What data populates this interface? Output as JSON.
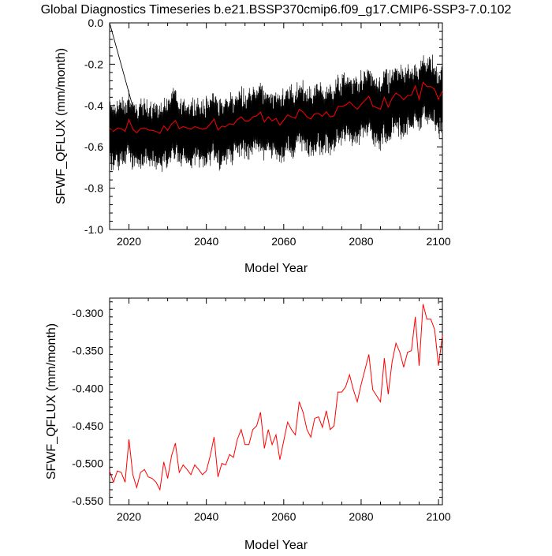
{
  "title": "Global Diagnostics Timeseries b.e21.BSSP370cmip6.f09_g17.CMIP6-SSP3-7.0.102",
  "colors": {
    "monthly": "#000000",
    "annual": "#ff0000",
    "axis": "#000000"
  },
  "chart_data": [
    {
      "type": "line",
      "xlabel": "Model Year",
      "ylabel": "SFWF_QFLUX (mm/month)",
      "xlim": [
        2015,
        2101
      ],
      "ylim": [
        -1.0,
        0.0
      ],
      "xticks": [
        2020,
        2040,
        2060,
        2080,
        2100
      ],
      "yticks": [
        -1.0,
        -0.8,
        -0.6,
        -0.4,
        -0.2,
        0.0
      ],
      "ytick_labels": [
        "-1.0",
        "-0.8",
        "-0.6",
        "-0.4",
        "-0.2",
        "0.0"
      ],
      "grid": false,
      "series": [
        {
          "description": "monthly values (black, dense oscillation)",
          "color": "#000000",
          "year_start": 2015,
          "months_per_year": 12,
          "monthly_cycle_trough": -0.68,
          "monthly_cycle_peak": -0.42,
          "spikes_from_zero": [
            [
              2015.0,
              0.0
            ],
            [
              2021.5,
              -0.45
            ]
          ]
        },
        {
          "description": "annual mean (red)",
          "color": "#ff0000",
          "x": [
            2015,
            2016,
            2017,
            2018,
            2019,
            2020,
            2021,
            2022,
            2023,
            2024,
            2025,
            2026,
            2027,
            2028,
            2029,
            2030,
            2031,
            2032,
            2033,
            2034,
            2035,
            2036,
            2037,
            2038,
            2039,
            2040,
            2041,
            2042,
            2043,
            2044,
            2045,
            2046,
            2047,
            2048,
            2049,
            2050,
            2051,
            2052,
            2053,
            2054,
            2055,
            2056,
            2057,
            2058,
            2059,
            2060,
            2061,
            2062,
            2063,
            2064,
            2065,
            2066,
            2067,
            2068,
            2069,
            2070,
            2071,
            2072,
            2073,
            2074,
            2075,
            2076,
            2077,
            2078,
            2079,
            2080,
            2081,
            2082,
            2083,
            2084,
            2085,
            2086,
            2087,
            2088,
            2089,
            2090,
            2091,
            2092,
            2093,
            2094,
            2095,
            2096,
            2097,
            2098,
            2099,
            2100,
            2101
          ],
          "values": [
            -0.51,
            -0.525,
            -0.51,
            -0.512,
            -0.525,
            -0.468,
            -0.515,
            -0.532,
            -0.512,
            -0.508,
            -0.518,
            -0.52,
            -0.525,
            -0.535,
            -0.498,
            -0.52,
            -0.49,
            -0.473,
            -0.512,
            -0.502,
            -0.508,
            -0.515,
            -0.502,
            -0.508,
            -0.515,
            -0.51,
            -0.49,
            -0.465,
            -0.518,
            -0.5,
            -0.502,
            -0.488,
            -0.492,
            -0.468,
            -0.455,
            -0.475,
            -0.475,
            -0.455,
            -0.45,
            -0.432,
            -0.48,
            -0.455,
            -0.475,
            -0.462,
            -0.495,
            -0.47,
            -0.445,
            -0.455,
            -0.462,
            -0.418,
            -0.432,
            -0.455,
            -0.465,
            -0.44,
            -0.438,
            -0.452,
            -0.43,
            -0.455,
            -0.45,
            -0.405,
            -0.405,
            -0.398,
            -0.382,
            -0.402,
            -0.418,
            -0.395,
            -0.375,
            -0.355,
            -0.402,
            -0.41,
            -0.418,
            -0.36,
            -0.408,
            -0.365,
            -0.34,
            -0.352,
            -0.372,
            -0.352,
            -0.35,
            -0.305,
            -0.37,
            -0.288,
            -0.308,
            -0.308,
            -0.322,
            -0.37,
            -0.33
          ]
        }
      ]
    },
    {
      "type": "line",
      "xlabel": "Model Year",
      "ylabel": "SFWF_QFLUX (mm/month)",
      "xlim": [
        2015,
        2101
      ],
      "ylim": [
        -0.555,
        -0.28
      ],
      "xticks": [
        2020,
        2040,
        2060,
        2080,
        2100
      ],
      "yticks": [
        -0.55,
        -0.5,
        -0.45,
        -0.4,
        -0.35,
        -0.3
      ],
      "ytick_labels": [
        "-0.550",
        "-0.500",
        "-0.450",
        "-0.400",
        "-0.350",
        "-0.300"
      ],
      "grid": false,
      "series": [
        {
          "description": "annual mean (red)",
          "color": "#ff0000",
          "source_ref": "same as panel 1 annual mean"
        }
      ]
    }
  ]
}
